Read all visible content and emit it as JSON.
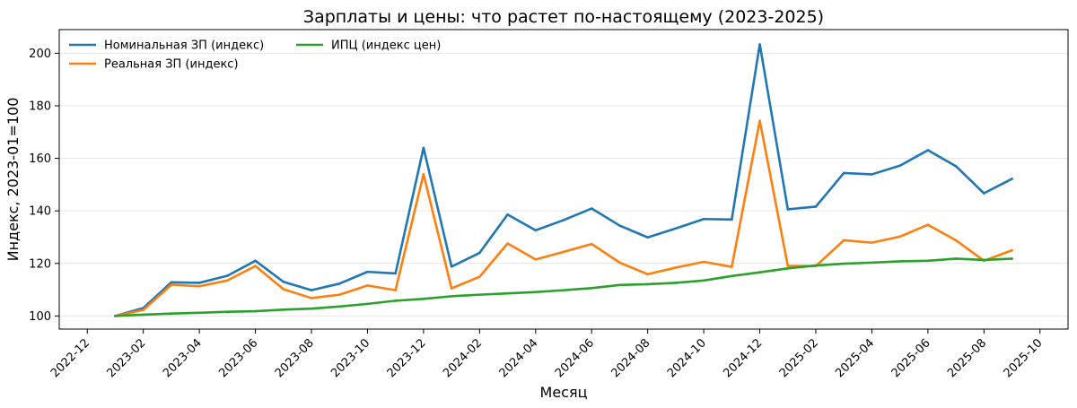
{
  "chart_data": {
    "type": "line",
    "title": "Зарплаты и цены: что растет по-настоящему (2023-2025)",
    "xlabel": "Месяц",
    "ylabel": "Индекс, 2023-01=100",
    "x": [
      "2023-01",
      "2023-02",
      "2023-03",
      "2023-04",
      "2023-05",
      "2023-06",
      "2023-07",
      "2023-08",
      "2023-09",
      "2023-10",
      "2023-11",
      "2023-12",
      "2024-01",
      "2024-02",
      "2024-03",
      "2024-04",
      "2024-05",
      "2024-06",
      "2024-07",
      "2024-08",
      "2024-09",
      "2024-10",
      "2024-11",
      "2024-12",
      "2025-01",
      "2025-02",
      "2025-03",
      "2025-04",
      "2025-05",
      "2025-06",
      "2025-07",
      "2025-08",
      "2025-09"
    ],
    "x_ticks": [
      "2022-12",
      "2023-02",
      "2023-04",
      "2023-06",
      "2023-08",
      "2023-10",
      "2023-12",
      "2024-02",
      "2024-04",
      "2024-06",
      "2024-08",
      "2024-10",
      "2024-12",
      "2025-02",
      "2025-04",
      "2025-06",
      "2025-08",
      "2025-10"
    ],
    "xlim": [
      "2022-11",
      "2025-11"
    ],
    "y_ticks": [
      100,
      120,
      140,
      160,
      180,
      200
    ],
    "ylim": [
      95,
      209
    ],
    "grid": "horizontal",
    "legend_position": "top-left",
    "series": [
      {
        "name": "Номинальная ЗП (индекс)",
        "color": "#1f77b4",
        "values": [
          100,
          103,
          112.8,
          112.6,
          115.3,
          121.0,
          113.0,
          109.8,
          112.3,
          116.8,
          116.2,
          164.0,
          118.8,
          124.0,
          138.6,
          132.6,
          136.5,
          140.9,
          134.4,
          129.9,
          133.3,
          136.9,
          136.7,
          203.4,
          140.6,
          141.6,
          154.4,
          153.9,
          157.2,
          163.1,
          157.0,
          146.7,
          152.2
        ]
      },
      {
        "name": "Реальная ЗП (индекс)",
        "color": "#ff7f0e",
        "values": [
          100,
          102.3,
          111.9,
          111.3,
          113.5,
          119.0,
          110.2,
          106.8,
          108.1,
          111.6,
          109.8,
          154.0,
          110.5,
          114.9,
          127.6,
          121.5,
          124.4,
          127.4,
          120.3,
          115.9,
          118.4,
          120.6,
          118.7,
          174.3,
          119.1,
          119.0,
          128.8,
          127.9,
          130.2,
          134.7,
          128.8,
          121.0,
          125.0
        ]
      },
      {
        "name": "ИПЦ (индекс цен)",
        "color": "#2ca02c",
        "values": [
          100,
          100.5,
          100.9,
          101.2,
          101.6,
          101.8,
          102.4,
          102.8,
          103.6,
          104.6,
          105.8,
          106.5,
          107.5,
          108.1,
          108.6,
          109.1,
          109.8,
          110.6,
          111.8,
          112.1,
          112.6,
          113.5,
          115.2,
          116.6,
          118.1,
          119.2,
          119.9,
          120.3,
          120.8,
          121.0,
          121.8,
          121.3,
          121.8
        ]
      }
    ]
  }
}
